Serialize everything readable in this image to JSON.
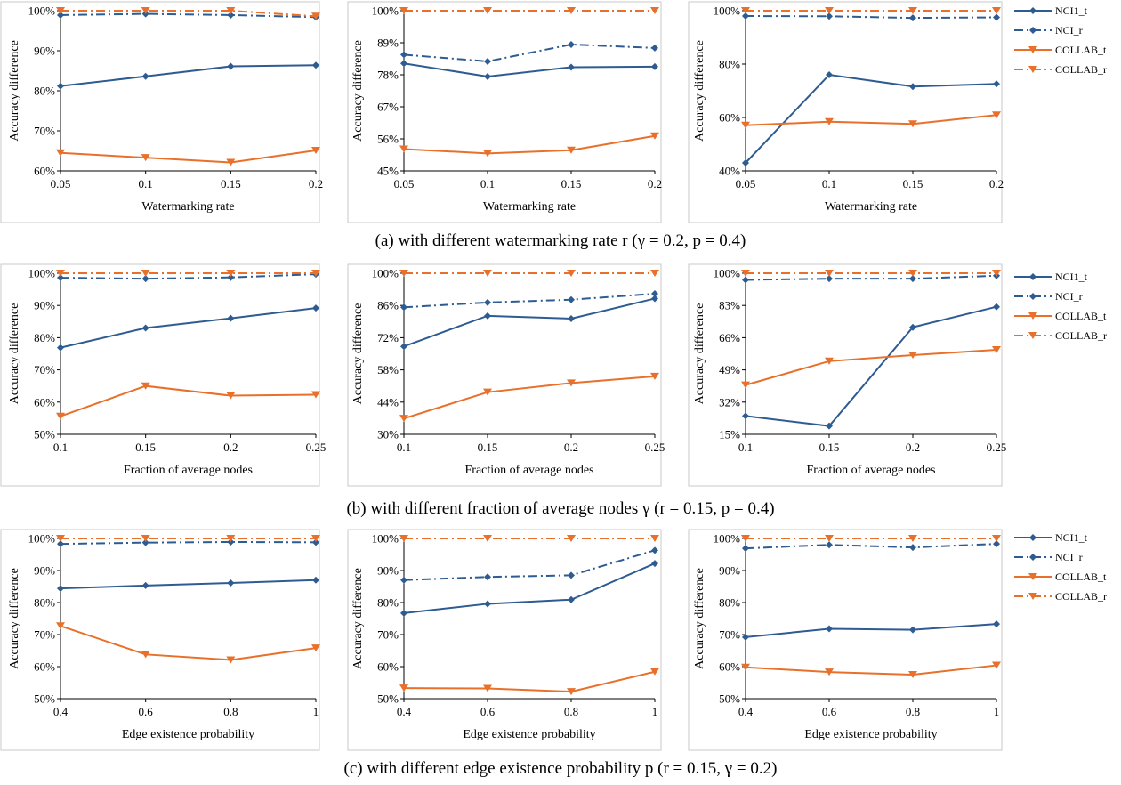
{
  "colors": {
    "ncit": "#2e5c92",
    "collab": "#e8702a"
  },
  "legend": [
    "NCI1_t",
    "NCI_r",
    "COLLAB_t",
    "COLLAB_r"
  ],
  "captions": [
    "(a) with different watermarking rate r (γ = 0.2, p = 0.4)",
    "(b) with different fraction of average nodes γ (r = 0.15, p = 0.4)",
    "(c) with different edge existence probability p (r = 0.15, γ = 0.2)"
  ],
  "chart_data": [
    {
      "type": "line",
      "xlabel": "Watermarking rate",
      "ylabel": "Accuracy difference",
      "x": [
        "0.05",
        "0.1",
        "0.15",
        "0.2"
      ],
      "ylim": [
        60,
        100
      ],
      "yticks": [
        60,
        70,
        80,
        90,
        100
      ],
      "ytick_labels": [
        "60%",
        "70%",
        "80%",
        "90%",
        "100%"
      ],
      "series": [
        {
          "name": "NCI1_t",
          "values": [
            81.2,
            83.6,
            86.1,
            86.4
          ]
        },
        {
          "name": "NCI_r",
          "values": [
            98.9,
            99.2,
            98.9,
            98.4
          ]
        },
        {
          "name": "COLLAB_t",
          "values": [
            64.5,
            63.3,
            62.1,
            65.1
          ]
        },
        {
          "name": "COLLAB_r",
          "values": [
            100,
            100,
            100,
            98.6
          ]
        }
      ]
    },
    {
      "type": "line",
      "xlabel": "Watermarking rate",
      "ylabel": "Accuracy difference",
      "x": [
        "0.05",
        "0.1",
        "0.15",
        "0.2"
      ],
      "ylim": [
        45,
        100
      ],
      "yticks": [
        45,
        56,
        67,
        78,
        89,
        100
      ],
      "ytick_labels": [
        "45%",
        "56%",
        "67%",
        "78%",
        "89%",
        "100%"
      ],
      "series": [
        {
          "name": "NCI1_t",
          "values": [
            81.9,
            77.4,
            80.6,
            80.8
          ]
        },
        {
          "name": "NCI_r",
          "values": [
            84.9,
            82.6,
            88.4,
            87.2
          ]
        },
        {
          "name": "COLLAB_t",
          "values": [
            52.5,
            51.0,
            52.1,
            57.0
          ]
        },
        {
          "name": "COLLAB_r",
          "values": [
            100,
            100,
            100,
            100
          ]
        }
      ]
    },
    {
      "type": "line",
      "xlabel": "Watermarking rate",
      "ylabel": "Accuracy difference",
      "x": [
        "0.05",
        "0.1",
        "0.15",
        "0.2"
      ],
      "ylim": [
        40,
        100
      ],
      "yticks": [
        40,
        60,
        80,
        100
      ],
      "ytick_labels": [
        "40%",
        "60%",
        "80%",
        "100%"
      ],
      "series": [
        {
          "name": "NCI1_t",
          "values": [
            43.0,
            76.0,
            71.6,
            72.6
          ]
        },
        {
          "name": "NCI_r",
          "values": [
            98.0,
            97.9,
            97.3,
            97.5
          ]
        },
        {
          "name": "COLLAB_t",
          "values": [
            57.1,
            58.4,
            57.6,
            60.9
          ]
        },
        {
          "name": "COLLAB_r",
          "values": [
            100,
            100,
            100,
            100
          ]
        }
      ]
    },
    {
      "type": "line",
      "xlabel": "Fraction of average nodes",
      "ylabel": "Accuracy difference",
      "x": [
        "0.1",
        "0.15",
        "0.2",
        "0.25"
      ],
      "ylim": [
        50,
        100
      ],
      "yticks": [
        50,
        60,
        70,
        80,
        90,
        100
      ],
      "ytick_labels": [
        "50%",
        "60%",
        "70%",
        "80%",
        "90%",
        "100%"
      ],
      "series": [
        {
          "name": "NCI1_t",
          "values": [
            76.9,
            83.0,
            86.0,
            89.2
          ]
        },
        {
          "name": "NCI_r",
          "values": [
            98.6,
            98.3,
            98.7,
            99.7
          ]
        },
        {
          "name": "COLLAB_t",
          "values": [
            55.6,
            65.0,
            62.0,
            62.3
          ]
        },
        {
          "name": "COLLAB_r",
          "values": [
            100,
            100,
            100,
            100
          ]
        }
      ]
    },
    {
      "type": "line",
      "xlabel": "Fraction of average nodes",
      "ylabel": "Accuracy difference",
      "x": [
        "0.1",
        "0.15",
        "0.2",
        "0.25"
      ],
      "ylim": [
        30,
        100
      ],
      "yticks": [
        30,
        44,
        58,
        72,
        86,
        100
      ],
      "ytick_labels": [
        "30%",
        "44%",
        "58%",
        "72%",
        "86%",
        "100%"
      ],
      "series": [
        {
          "name": "NCI1_t",
          "values": [
            68.2,
            81.5,
            80.3,
            89.0
          ]
        },
        {
          "name": "NCI_r",
          "values": [
            85.2,
            87.3,
            88.5,
            91.1
          ]
        },
        {
          "name": "COLLAB_t",
          "values": [
            36.9,
            48.3,
            52.3,
            55.2
          ]
        },
        {
          "name": "COLLAB_r",
          "values": [
            100,
            100,
            100,
            100
          ]
        }
      ]
    },
    {
      "type": "line",
      "xlabel": "Fraction of average nodes",
      "ylabel": "Accuracy difference",
      "x": [
        "0.1",
        "0.15",
        "0.2",
        "0.25"
      ],
      "ylim": [
        15,
        100
      ],
      "yticks": [
        15,
        32,
        49,
        66,
        83,
        100
      ],
      "ytick_labels": [
        "15%",
        "32%",
        "49%",
        "66%",
        "83%",
        "100%"
      ],
      "series": [
        {
          "name": "NCI1_t",
          "values": [
            24.7,
            19.4,
            71.5,
            82.3
          ]
        },
        {
          "name": "NCI_r",
          "values": [
            96.5,
            97.1,
            97.1,
            98.7
          ]
        },
        {
          "name": "COLLAB_t",
          "values": [
            41.0,
            53.6,
            56.8,
            59.6
          ]
        },
        {
          "name": "COLLAB_r",
          "values": [
            100,
            100,
            100,
            100
          ]
        }
      ]
    },
    {
      "type": "line",
      "xlabel": "Edge existence probability",
      "ylabel": "Accuracy difference",
      "x": [
        "0.4",
        "0.6",
        "0.8",
        "1"
      ],
      "ylim": [
        50,
        100
      ],
      "yticks": [
        50,
        60,
        70,
        80,
        90,
        100
      ],
      "ytick_labels": [
        "50%",
        "60%",
        "70%",
        "80%",
        "90%",
        "100%"
      ],
      "series": [
        {
          "name": "NCI1_t",
          "values": [
            84.4,
            85.3,
            86.1,
            87.0
          ]
        },
        {
          "name": "NCI_r",
          "values": [
            98.3,
            98.7,
            98.9,
            98.8
          ]
        },
        {
          "name": "COLLAB_t",
          "values": [
            72.7,
            63.8,
            62.1,
            65.8
          ]
        },
        {
          "name": "COLLAB_r",
          "values": [
            100,
            100,
            100,
            100
          ]
        }
      ]
    },
    {
      "type": "line",
      "xlabel": "Edge existence probability",
      "ylabel": "Accuracy difference",
      "x": [
        "0.4",
        "0.6",
        "0.8",
        "1"
      ],
      "ylim": [
        50,
        100
      ],
      "yticks": [
        50,
        60,
        70,
        80,
        90,
        100
      ],
      "ytick_labels": [
        "50%",
        "60%",
        "70%",
        "80%",
        "90%",
        "100%"
      ],
      "series": [
        {
          "name": "NCI1_t",
          "values": [
            76.7,
            79.6,
            80.9,
            92.2
          ]
        },
        {
          "name": "NCI_r",
          "values": [
            87.0,
            88.0,
            88.5,
            96.3
          ]
        },
        {
          "name": "COLLAB_t",
          "values": [
            53.3,
            53.2,
            52.2,
            58.4
          ]
        },
        {
          "name": "COLLAB_r",
          "values": [
            100,
            100,
            100,
            100
          ]
        }
      ]
    },
    {
      "type": "line",
      "xlabel": "Edge existence probability",
      "ylabel": "Accuracy difference",
      "x": [
        "0.4",
        "0.6",
        "0.8",
        "1"
      ],
      "ylim": [
        50,
        100
      ],
      "yticks": [
        50,
        60,
        70,
        80,
        90,
        100
      ],
      "ytick_labels": [
        "50%",
        "60%",
        "70%",
        "80%",
        "90%",
        "100%"
      ],
      "series": [
        {
          "name": "NCI1_t",
          "values": [
            69.2,
            71.8,
            71.5,
            73.3
          ]
        },
        {
          "name": "NCI_r",
          "values": [
            96.9,
            98.0,
            97.2,
            98.3
          ]
        },
        {
          "name": "COLLAB_t",
          "values": [
            59.8,
            58.3,
            57.5,
            60.4
          ]
        },
        {
          "name": "COLLAB_r",
          "values": [
            100,
            100,
            100,
            100
          ]
        }
      ]
    }
  ]
}
